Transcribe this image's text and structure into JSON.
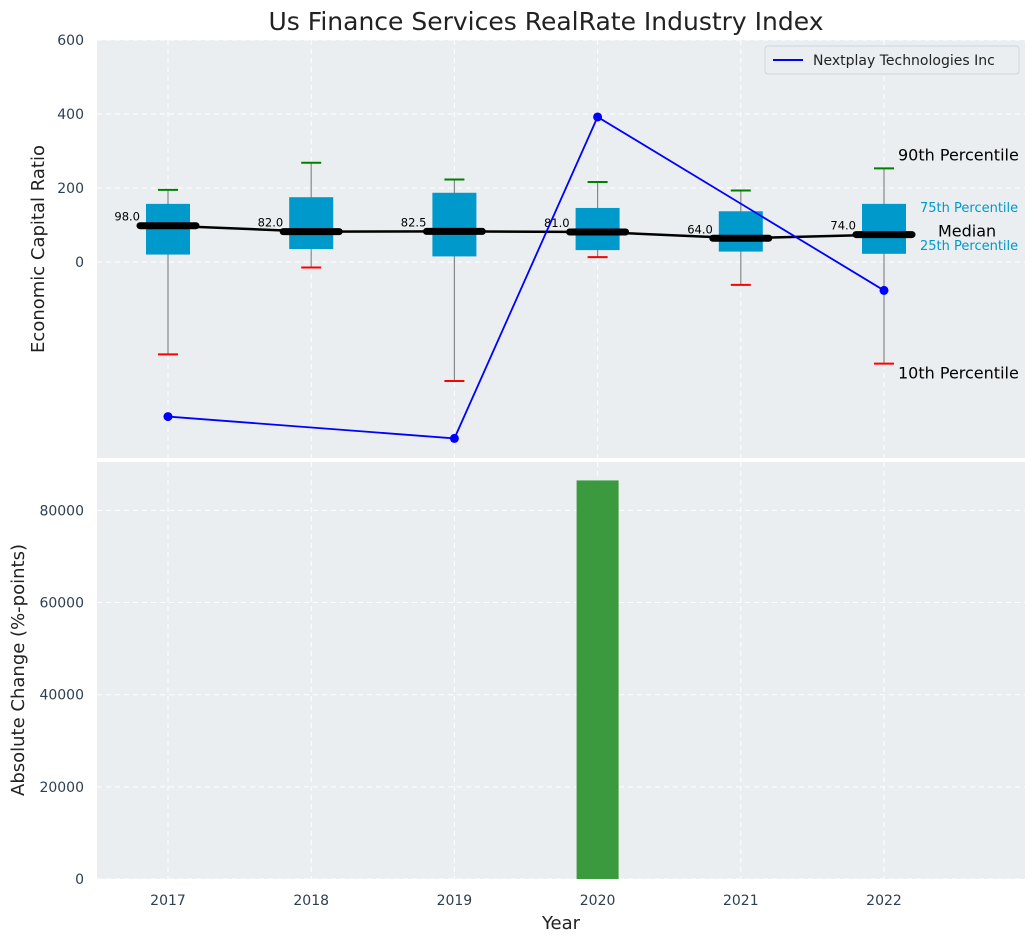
{
  "chart_data": {
    "title": "Us Finance Services RealRate Industry Index",
    "xlabel": "Year",
    "years": [
      "2017",
      "2018",
      "2019",
      "2020",
      "2021",
      "2022"
    ],
    "top": {
      "type": "box",
      "ylabel": "Economic Capital Ratio",
      "ylim": [
        -530,
        600
      ],
      "yticks": [
        "0",
        "200",
        "400",
        "600"
      ],
      "boxes": [
        {
          "year": "2017",
          "p10": -250,
          "p25": 20,
          "median": 98.0,
          "p75": 157,
          "p90": 195,
          "label": "98.0"
        },
        {
          "year": "2018",
          "p10": -15,
          "p25": 35,
          "median": 82.0,
          "p75": 175,
          "p90": 268,
          "label": "82.0"
        },
        {
          "year": "2019",
          "p10": -322,
          "p25": 15,
          "median": 82.5,
          "p75": 187,
          "p90": 223,
          "label": "82.5"
        },
        {
          "year": "2020",
          "p10": 13,
          "p25": 32,
          "median": 81.0,
          "p75": 146,
          "p90": 216,
          "label": "81.0"
        },
        {
          "year": "2021",
          "p10": -62,
          "p25": 28,
          "median": 64.0,
          "p75": 137,
          "p90": 193,
          "label": "64.0"
        },
        {
          "year": "2022",
          "p10": -275,
          "p25": 22,
          "median": 74.0,
          "p75": 157,
          "p90": 253,
          "label": "74.0"
        }
      ],
      "company_series": {
        "name": "Nextplay Technologies Inc",
        "points": [
          {
            "year": "2017",
            "value": -418
          },
          {
            "year": "2019",
            "value": -477
          },
          {
            "year": "2020",
            "value": 392
          },
          {
            "year": "2022",
            "value": -77
          }
        ]
      },
      "annotations": {
        "p90": "90th Percentile",
        "p75": "75th Percentile",
        "median": "Median",
        "p25": "25th Percentile",
        "p10": "10th Percentile"
      }
    },
    "bottom": {
      "type": "bar",
      "ylabel": "Absolute Change (%-points)",
      "ylim": [
        0,
        90500
      ],
      "yticks": [
        "0",
        "20000",
        "40000",
        "60000",
        "80000"
      ],
      "values": [
        0,
        0,
        0,
        86500,
        0,
        0
      ]
    },
    "colors": {
      "box": "#0099cc",
      "company": "#0000ff",
      "median": "#000000",
      "p90_cap": "#008000",
      "p10_cap": "#ff0000",
      "bar": "#3a9a3d",
      "axes_bg": "#eaeef0",
      "whisker": "#888888"
    }
  }
}
